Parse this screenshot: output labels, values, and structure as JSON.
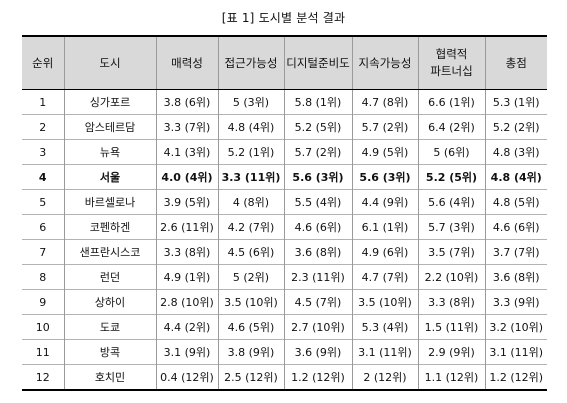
{
  "caption": "[표 1] 도시별 분석 결과",
  "headers": [
    "순위",
    "도시",
    "매력성",
    "접근가능성",
    "디지털준비도",
    "지속가능성",
    "협력적\n파트너십",
    "총점"
  ],
  "rows": [
    [
      "1",
      "싱가포르",
      "3.8 (6위)",
      "5 (3위)",
      "5.8 (1위)",
      "4.7 (8위)",
      "6.6 (1위)",
      "5.3 (1위)"
    ],
    [
      "2",
      "암스테르담",
      "3.3 (7위)",
      "4.8 (4위)",
      "5.2 (5위)",
      "5.7 (2위)",
      "6.4 (2위)",
      "5.2 (2위)"
    ],
    [
      "3",
      "뉴욕",
      "4.1 (3위)",
      "5.2 (1위)",
      "5.7 (2위)",
      "4.9 (5위)",
      "5 (6위)",
      "4.8 (3위)"
    ],
    [
      "4",
      "서울",
      "4.0 (4위)",
      "3.3 (11위)",
      "5.6 (3위)",
      "5.6 (3위)",
      "5.2 (5위)",
      "4.8 (4위)"
    ],
    [
      "5",
      "바르셀로나",
      "3.9 (5위)",
      "4 (8위)",
      "5.5 (4위)",
      "4.4 (9위)",
      "5.6 (4위)",
      "4.8 (5위)"
    ],
    [
      "6",
      "코펜하겐",
      "2.6 (11위)",
      "4.2 (7위)",
      "4.6 (6위)",
      "6.1 (1위)",
      "5.7 (3위)",
      "4.6 (6위)"
    ],
    [
      "7",
      "샌프란시스코",
      "3.3 (8위)",
      "4.5 (6위)",
      "3.6 (8위)",
      "4.9 (6위)",
      "3.5 (7위)",
      "3.7 (7위)"
    ],
    [
      "8",
      "런던",
      "4.9 (1위)",
      "5 (2위)",
      "2.3 (11위)",
      "4.7 (7위)",
      "2.2 (10위)",
      "3.6 (8위)"
    ],
    [
      "9",
      "상하이",
      "2.8 (10위)",
      "3.5 (10위)",
      "4.5 (7위)",
      "3.5 (10위)",
      "3.3 (8위)",
      "3.3 (9위)"
    ],
    [
      "10",
      "도쿄",
      "4.4 (2위)",
      "4.6 (5위)",
      "2.7 (10위)",
      "5.3 (4위)",
      "1.5 (11위)",
      "3.2 (10위)"
    ],
    [
      "11",
      "방콕",
      "3.1 (9위)",
      "3.8 (9위)",
      "3.6 (9위)",
      "3.1 (11위)",
      "2.9 (9위)",
      "3.1 (11위)"
    ],
    [
      "12",
      "호치민",
      "0.4 (12위)",
      "2.5 (12위)",
      "1.2 (12위)",
      "2 (12위)",
      "1.1 (12위)",
      "1.2 (12위)"
    ]
  ],
  "highlight_row_index": 3
}
